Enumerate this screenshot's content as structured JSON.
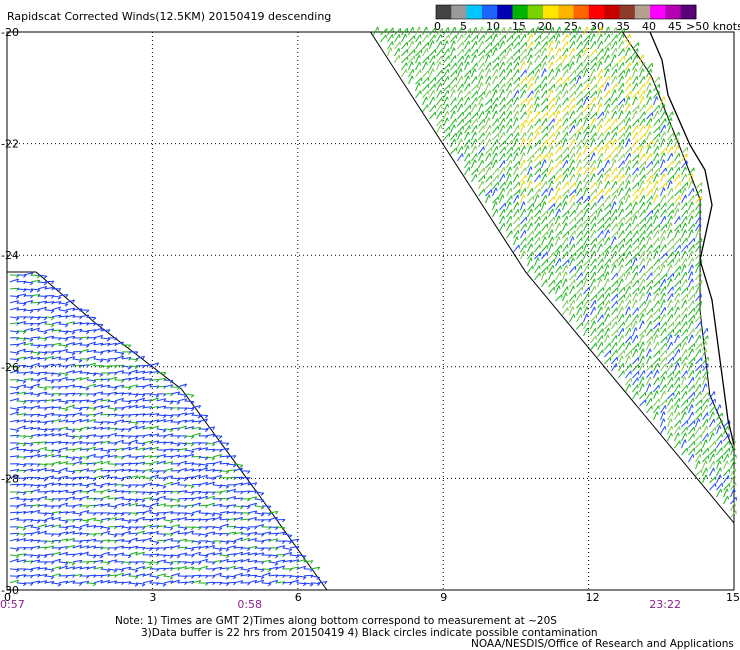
{
  "chart_data": {
    "type": "scatter",
    "title": "Rapidscat Corrected Winds(12.5KM) 20150419 descending",
    "x_ticks": [
      "0",
      "3",
      "6",
      "9",
      "12",
      "15"
    ],
    "y_ticks": [
      "-20",
      "-22",
      "-24",
      "-26",
      "-28",
      "-30"
    ],
    "xlim": [
      0,
      15
    ],
    "ylim": [
      -30,
      -20
    ],
    "grid": true,
    "time_labels": [
      {
        "x": 0,
        "label": "0:57"
      },
      {
        "x": 5,
        "label": "0:58"
      },
      {
        "x": 13.5,
        "label": "23:22"
      }
    ],
    "colorbar": {
      "ticks": [
        "0",
        "5",
        "10",
        "15",
        "20",
        "25",
        "30",
        "35",
        "40",
        "45",
        ">50 knots"
      ],
      "colors": [
        "#444444",
        "#9a9a9a",
        "#00c8ff",
        "#1e64ff",
        "#0000b4",
        "#00b400",
        "#78d200",
        "#ffe600",
        "#ffb400",
        "#ff6400",
        "#ff0000",
        "#c80000",
        "#8c3c28",
        "#b4a08c",
        "#ff00ff",
        "#b400b4",
        "#5a0078"
      ]
    },
    "swaths": [
      {
        "name": "swath-east",
        "polygon": [
          [
            7.5,
            -20
          ],
          [
            12.7,
            -20
          ],
          [
            13.3,
            -20.8
          ],
          [
            13.9,
            -22.1
          ],
          [
            14.3,
            -23.0
          ],
          [
            14.3,
            -25.0
          ],
          [
            14.5,
            -26.5
          ],
          [
            15,
            -27.5
          ],
          [
            15,
            -28.8
          ],
          [
            10.7,
            -24.3
          ],
          [
            7.5,
            -20
          ]
        ]
      },
      {
        "name": "swath-west",
        "polygon": [
          [
            0,
            -24.3
          ],
          [
            0.6,
            -24.3
          ],
          [
            1.8,
            -25.2
          ],
          [
            3.6,
            -26.4
          ],
          [
            5.2,
            -28.3
          ],
          [
            6.6,
            -30
          ],
          [
            0,
            -30
          ]
        ]
      }
    ]
  },
  "notes": {
    "line1": "Note: 1) Times are GMT 2)Times along bottom correspond to measurement at ~20S",
    "line2": "3)Data buffer is 22 hrs from 20150419 4) Black circles indicate possible contamination",
    "line3": "NOAA/NESDIS/Office of Research and Applications"
  }
}
